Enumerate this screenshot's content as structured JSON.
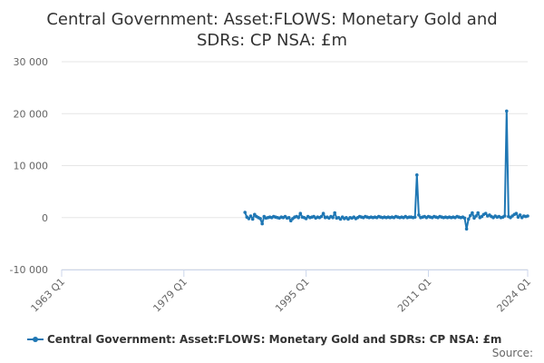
{
  "chart_data": {
    "type": "line",
    "title_lines": [
      "Central Government: Asset:FLOWS: Monetary Gold and",
      "SDRs: CP NSA: £m"
    ],
    "x_range": [
      "1963 Q1",
      "2024 Q1"
    ],
    "x_tick_labels": [
      "1963 Q1",
      "1979 Q1",
      "1995 Q1",
      "2011 Q1",
      "2024 Q1"
    ],
    "ylim": [
      -10000,
      30000
    ],
    "y_tick_values": [
      -10000,
      0,
      10000,
      20000,
      30000
    ],
    "y_tick_labels": [
      "-10 000",
      "0",
      "10 000",
      "20 000",
      "30 000"
    ],
    "grid": true,
    "legend_position": "bottom",
    "series": [
      {
        "name": "Central Government: Asset:FLOWS: Monetary Gold and SDRs: CP NSA: £m",
        "color": "#1f77b4",
        "points": [
          [
            "1987 Q1",
            1000
          ],
          [
            "1987 Q2",
            100
          ],
          [
            "1987 Q3",
            -200
          ],
          [
            "1987 Q4",
            300
          ],
          [
            "1988 Q1",
            -300
          ],
          [
            "1988 Q2",
            600
          ],
          [
            "1988 Q3",
            200
          ],
          [
            "1988 Q4",
            0
          ],
          [
            "1989 Q1",
            -200
          ],
          [
            "1989 Q2",
            -1200
          ],
          [
            "1989 Q3",
            200
          ],
          [
            "1989 Q4",
            -100
          ],
          [
            "1990 Q1",
            0
          ],
          [
            "1990 Q2",
            100
          ],
          [
            "1990 Q3",
            0
          ],
          [
            "1990 Q4",
            200
          ],
          [
            "1991 Q1",
            100
          ],
          [
            "1991 Q2",
            0
          ],
          [
            "1991 Q3",
            -100
          ],
          [
            "1991 Q4",
            100
          ],
          [
            "1992 Q1",
            0
          ],
          [
            "1992 Q2",
            200
          ],
          [
            "1992 Q3",
            -100
          ],
          [
            "1992 Q4",
            0
          ],
          [
            "1993 Q1",
            -600
          ],
          [
            "1993 Q2",
            -200
          ],
          [
            "1993 Q3",
            100
          ],
          [
            "1993 Q4",
            200
          ],
          [
            "1994 Q1",
            0
          ],
          [
            "1994 Q2",
            800
          ],
          [
            "1994 Q3",
            100
          ],
          [
            "1994 Q4",
            0
          ],
          [
            "1995 Q1",
            -200
          ],
          [
            "1995 Q2",
            200
          ],
          [
            "1995 Q3",
            0
          ],
          [
            "1995 Q4",
            100
          ],
          [
            "1996 Q1",
            200
          ],
          [
            "1996 Q2",
            -100
          ],
          [
            "1996 Q3",
            100
          ],
          [
            "1996 Q4",
            0
          ],
          [
            "1997 Q1",
            200
          ],
          [
            "1997 Q2",
            800
          ],
          [
            "1997 Q3",
            0
          ],
          [
            "1997 Q4",
            100
          ],
          [
            "1998 Q1",
            -100
          ],
          [
            "1998 Q2",
            200
          ],
          [
            "1998 Q3",
            0
          ],
          [
            "1998 Q4",
            900
          ],
          [
            "1999 Q1",
            -100
          ],
          [
            "1999 Q2",
            0
          ],
          [
            "1999 Q3",
            -300
          ],
          [
            "1999 Q4",
            100
          ],
          [
            "2000 Q1",
            -200
          ],
          [
            "2000 Q2",
            0
          ],
          [
            "2000 Q3",
            -300
          ],
          [
            "2000 Q4",
            0
          ],
          [
            "2001 Q1",
            -100
          ],
          [
            "2001 Q2",
            100
          ],
          [
            "2001 Q3",
            -200
          ],
          [
            "2001 Q4",
            0
          ],
          [
            "2002 Q1",
            200
          ],
          [
            "2002 Q2",
            100
          ],
          [
            "2002 Q3",
            0
          ],
          [
            "2002 Q4",
            200
          ],
          [
            "2003 Q1",
            100
          ],
          [
            "2003 Q2",
            0
          ],
          [
            "2003 Q3",
            100
          ],
          [
            "2003 Q4",
            0
          ],
          [
            "2004 Q1",
            100
          ],
          [
            "2004 Q2",
            0
          ],
          [
            "2004 Q3",
            200
          ],
          [
            "2004 Q4",
            100
          ],
          [
            "2005 Q1",
            0
          ],
          [
            "2005 Q2",
            100
          ],
          [
            "2005 Q3",
            0
          ],
          [
            "2005 Q4",
            100
          ],
          [
            "2006 Q1",
            0
          ],
          [
            "2006 Q2",
            100
          ],
          [
            "2006 Q3",
            0
          ],
          [
            "2006 Q4",
            200
          ],
          [
            "2007 Q1",
            100
          ],
          [
            "2007 Q2",
            0
          ],
          [
            "2007 Q3",
            100
          ],
          [
            "2007 Q4",
            0
          ],
          [
            "2008 Q1",
            200
          ],
          [
            "2008 Q2",
            0
          ],
          [
            "2008 Q3",
            100
          ],
          [
            "2008 Q4",
            100
          ],
          [
            "2009 Q1",
            0
          ],
          [
            "2009 Q2",
            100
          ],
          [
            "2009 Q3",
            8200
          ],
          [
            "2009 Q4",
            500
          ],
          [
            "2010 Q1",
            0
          ],
          [
            "2010 Q2",
            100
          ],
          [
            "2010 Q3",
            200
          ],
          [
            "2010 Q4",
            0
          ],
          [
            "2011 Q1",
            200
          ],
          [
            "2011 Q2",
            100
          ],
          [
            "2011 Q3",
            0
          ],
          [
            "2011 Q4",
            200
          ],
          [
            "2012 Q1",
            100
          ],
          [
            "2012 Q2",
            0
          ],
          [
            "2012 Q3",
            200
          ],
          [
            "2012 Q4",
            100
          ],
          [
            "2013 Q1",
            0
          ],
          [
            "2013 Q2",
            100
          ],
          [
            "2013 Q3",
            0
          ],
          [
            "2013 Q4",
            100
          ],
          [
            "2014 Q1",
            0
          ],
          [
            "2014 Q2",
            100
          ],
          [
            "2014 Q3",
            0
          ],
          [
            "2014 Q4",
            200
          ],
          [
            "2015 Q1",
            100
          ],
          [
            "2015 Q2",
            0
          ],
          [
            "2015 Q3",
            100
          ],
          [
            "2015 Q4",
            -100
          ],
          [
            "2016 Q1",
            -2200
          ],
          [
            "2016 Q2",
            -300
          ],
          [
            "2016 Q3",
            400
          ],
          [
            "2016 Q4",
            900
          ],
          [
            "2017 Q1",
            -100
          ],
          [
            "2017 Q2",
            300
          ],
          [
            "2017 Q3",
            900
          ],
          [
            "2017 Q4",
            0
          ],
          [
            "2018 Q1",
            200
          ],
          [
            "2018 Q2",
            600
          ],
          [
            "2018 Q3",
            800
          ],
          [
            "2018 Q4",
            300
          ],
          [
            "2019 Q1",
            500
          ],
          [
            "2019 Q2",
            200
          ],
          [
            "2019 Q3",
            0
          ],
          [
            "2019 Q4",
            300
          ],
          [
            "2020 Q1",
            100
          ],
          [
            "2020 Q2",
            200
          ],
          [
            "2020 Q3",
            0
          ],
          [
            "2020 Q4",
            100
          ],
          [
            "2021 Q1",
            300
          ],
          [
            "2021 Q2",
            20500
          ],
          [
            "2021 Q3",
            200
          ],
          [
            "2021 Q4",
            0
          ],
          [
            "2022 Q1",
            300
          ],
          [
            "2022 Q2",
            600
          ],
          [
            "2022 Q3",
            800
          ],
          [
            "2022 Q4",
            100
          ],
          [
            "2023 Q1",
            500
          ],
          [
            "2023 Q2",
            0
          ],
          [
            "2023 Q3",
            300
          ],
          [
            "2023 Q4",
            200
          ],
          [
            "2024 Q1",
            300
          ]
        ]
      }
    ]
  },
  "legend": {
    "label": "Central Government: Asset:FLOWS: Monetary Gold and SDRs: CP NSA: £m",
    "marker_color": "#1f77b4"
  },
  "footer": {
    "source_label": "Source:"
  }
}
